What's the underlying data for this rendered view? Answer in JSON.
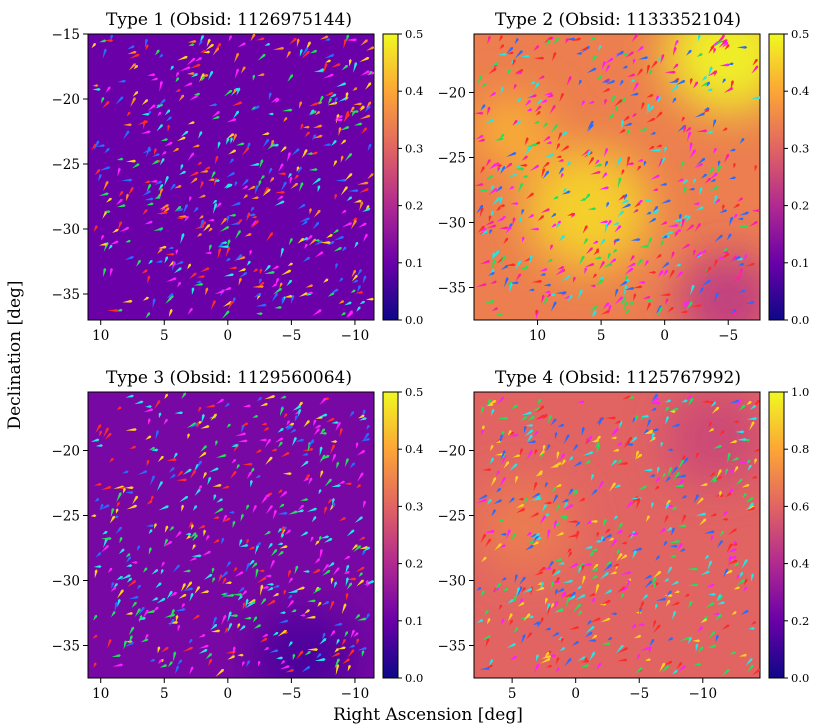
{
  "figure": {
    "xlabel": "Right Ascension [deg]",
    "ylabel": "Declination [deg]"
  },
  "chart_data": [
    {
      "type": "heatmap",
      "title": "Type 1 (Obsid: 1126975144)",
      "xlim": [
        11,
        -11.5
      ],
      "ylim": [
        -37,
        -15
      ],
      "xticks": [
        10,
        5,
        0,
        -5,
        -10
      ],
      "xtick_labels": [
        "10",
        "5",
        "0",
        "−5",
        "−10"
      ],
      "yticks": [
        -15,
        -20,
        -25,
        -30,
        -35
      ],
      "ytick_labels": [
        "−15",
        "−20",
        "−25",
        "−30",
        "−35"
      ],
      "colorbar": {
        "range": [
          0,
          0.5
        ],
        "ticks": [
          "0.0",
          "0.1",
          "0.2",
          "0.3",
          "0.4",
          "0.5"
        ]
      },
      "colormap": [
        "#0d0887",
        "#6a00a8",
        "#b12a90",
        "#e16462",
        "#fca636",
        "#f0f921"
      ],
      "background_level": 0.1,
      "hotspots": [],
      "arrow_count": 520,
      "arrow_palette": [
        "#ff2a2a",
        "#ffd21e",
        "#22e05a",
        "#1ee8e8",
        "#2a6bff",
        "#ff1eff",
        "#ff8a1e"
      ],
      "seed": 11
    },
    {
      "type": "heatmap",
      "title": "Type 2 (Obsid: 1133352104)",
      "xlim": [
        15,
        -7.5
      ],
      "ylim": [
        -37.5,
        -15.5
      ],
      "xticks": [
        10,
        5,
        0,
        -5
      ],
      "xtick_labels": [
        "10",
        "5",
        "0",
        "−5"
      ],
      "yticks": [
        -20,
        -25,
        -30,
        -35
      ],
      "ytick_labels": [
        "−20",
        "−25",
        "−30",
        "−35"
      ],
      "colorbar": {
        "range": [
          0,
          0.5
        ],
        "ticks": [
          "0.0",
          "0.1",
          "0.2",
          "0.3",
          "0.4",
          "0.5"
        ]
      },
      "colormap": [
        "#0d0887",
        "#6a00a8",
        "#b12a90",
        "#e16462",
        "#fca636",
        "#f0f921"
      ],
      "background_level": 0.34,
      "hotspots": [
        {
          "ra": 6,
          "dec": -29,
          "level": 0.46,
          "spread": 5
        },
        {
          "ra": -5,
          "dec": -17,
          "level": 0.5,
          "spread": 5
        },
        {
          "ra": 12,
          "dec": -23,
          "level": 0.42,
          "spread": 3
        },
        {
          "ra": -5,
          "dec": -36,
          "level": 0.22,
          "spread": 4
        }
      ],
      "arrow_count": 520,
      "arrow_palette": [
        "#ff1eff",
        "#ff2a2a",
        "#22e05a",
        "#1ee8e8",
        "#ff1eaa",
        "#2a6bff"
      ],
      "seed": 23
    },
    {
      "type": "heatmap",
      "title": "Type 3 (Obsid: 1129560064)",
      "xlim": [
        11,
        -11.5
      ],
      "ylim": [
        -37.5,
        -15.5
      ],
      "xticks": [
        10,
        5,
        0,
        -5,
        -10
      ],
      "xtick_labels": [
        "10",
        "5",
        "0",
        "−5",
        "−10"
      ],
      "yticks": [
        -20,
        -25,
        -30,
        -35
      ],
      "ytick_labels": [
        "−20",
        "−25",
        "−30",
        "−35"
      ],
      "colorbar": {
        "range": [
          0,
          0.5
        ],
        "ticks": [
          "0.0",
          "0.1",
          "0.2",
          "0.3",
          "0.4",
          "0.5"
        ]
      },
      "colormap": [
        "#0d0887",
        "#6a00a8",
        "#b12a90",
        "#e16462",
        "#fca636",
        "#f0f921"
      ],
      "background_level": 0.12,
      "hotspots": [
        {
          "ra": -6,
          "dec": -36,
          "level": 0.06,
          "spread": 4
        }
      ],
      "arrow_count": 520,
      "arrow_palette": [
        "#1ee8e8",
        "#ff2a2a",
        "#22e05a",
        "#ffd21e",
        "#2a6bff",
        "#ff1eff"
      ],
      "seed": 37
    },
    {
      "type": "heatmap",
      "title": "Type 4 (Obsid: 1125767992)",
      "xlim": [
        8,
        -14.5
      ],
      "ylim": [
        -37.5,
        -15.5
      ],
      "xticks": [
        5,
        0,
        -5,
        -10
      ],
      "xtick_labels": [
        "5",
        "0",
        "−5",
        "−10"
      ],
      "yticks": [
        -20,
        -25,
        -30,
        -35
      ],
      "ytick_labels": [
        "−20",
        "−25",
        "−30",
        "−35"
      ],
      "colorbar": {
        "range": [
          0,
          1
        ],
        "ticks": [
          "0.0",
          "0.2",
          "0.4",
          "0.6",
          "0.8",
          "1.0"
        ]
      },
      "colormap": [
        "#0d0887",
        "#6a00a8",
        "#b12a90",
        "#e16462",
        "#fca636",
        "#f0f921"
      ],
      "background_level": 0.6,
      "hotspots": [
        {
          "ra": 4,
          "dec": -26,
          "level": 0.68,
          "spread": 4
        },
        {
          "ra": -11,
          "dec": -19,
          "level": 0.5,
          "spread": 4
        }
      ],
      "arrow_count": 560,
      "arrow_palette": [
        "#1ee8e8",
        "#ff2a2a",
        "#ff1eff",
        "#2a6bff",
        "#22e05a",
        "#ffd21e"
      ],
      "seed": 53
    }
  ]
}
